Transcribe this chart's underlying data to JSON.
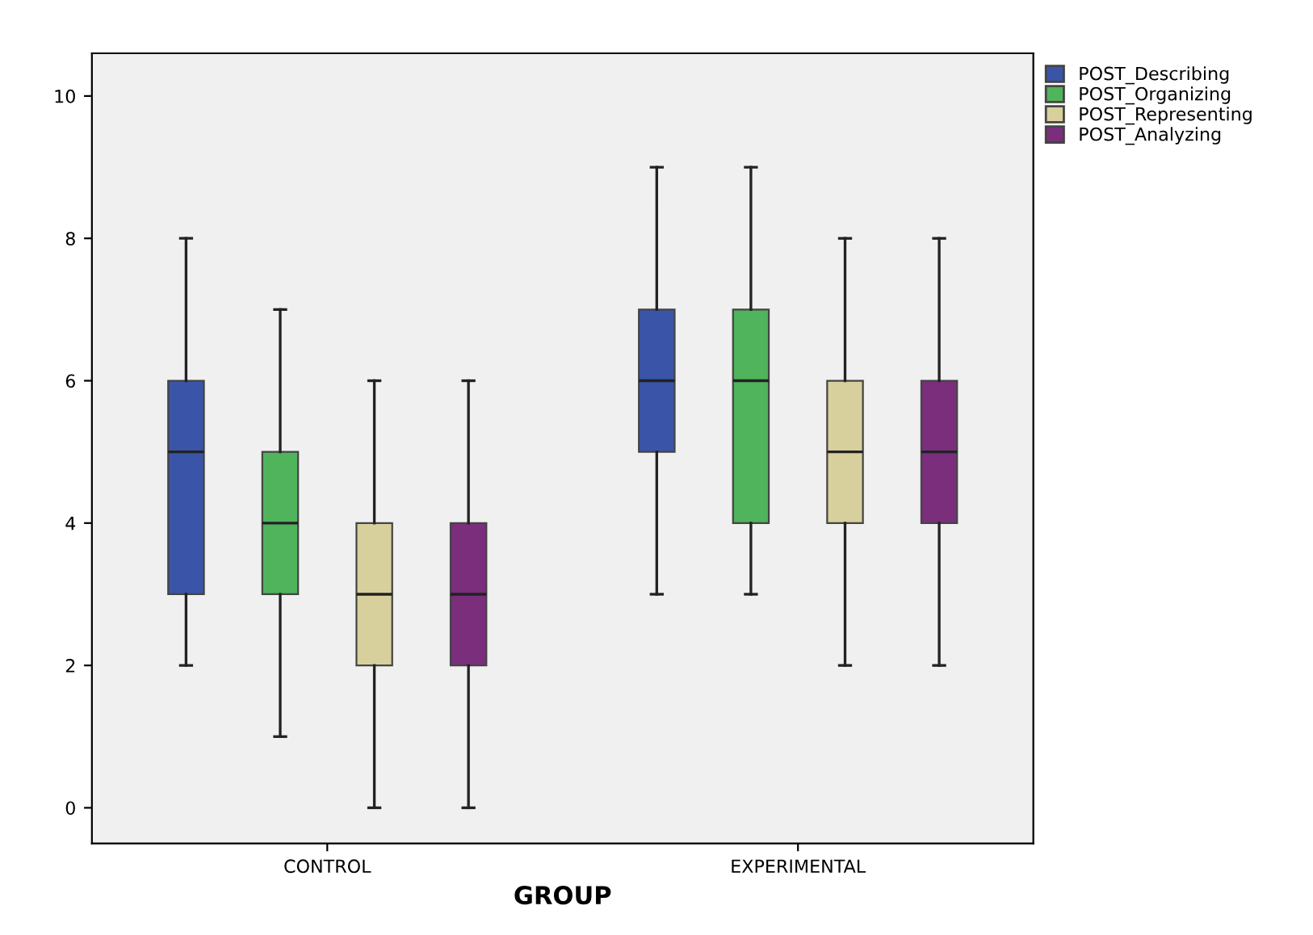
{
  "chart_data": {
    "type": "box",
    "xlabel": "GROUP",
    "categories": [
      "CONTROL",
      "EXPERIMENTAL"
    ],
    "ylim": [
      -0.5,
      10.6
    ],
    "yticks": [
      0,
      2,
      4,
      6,
      8,
      10
    ],
    "grid": false,
    "legend": "top right",
    "series": [
      {
        "name": "POST_Describing",
        "color": "#3a55a8",
        "boxes": [
          {
            "low": 2,
            "q1": 3,
            "median": 5,
            "q3": 6,
            "high": 8
          },
          {
            "low": 3,
            "q1": 5,
            "median": 6,
            "q3": 7,
            "high": 9
          }
        ]
      },
      {
        "name": "POST_Organizing",
        "color": "#4fb45c",
        "boxes": [
          {
            "low": 1,
            "q1": 3,
            "median": 4,
            "q3": 5,
            "high": 7
          },
          {
            "low": 3,
            "q1": 4,
            "median": 6,
            "q3": 7,
            "high": 9
          }
        ]
      },
      {
        "name": "POST_Representing",
        "color": "#d8d09c",
        "boxes": [
          {
            "low": 0,
            "q1": 2,
            "median": 3,
            "q3": 4,
            "high": 6
          },
          {
            "low": 2,
            "q1": 4,
            "median": 5,
            "q3": 6,
            "high": 8
          }
        ]
      },
      {
        "name": "POST_Analyzing",
        "color": "#7a2e7c",
        "boxes": [
          {
            "low": 0,
            "q1": 2,
            "median": 3,
            "q3": 4,
            "high": 6
          },
          {
            "low": 2,
            "q1": 4,
            "median": 5,
            "q3": 6,
            "high": 8
          }
        ]
      }
    ]
  }
}
